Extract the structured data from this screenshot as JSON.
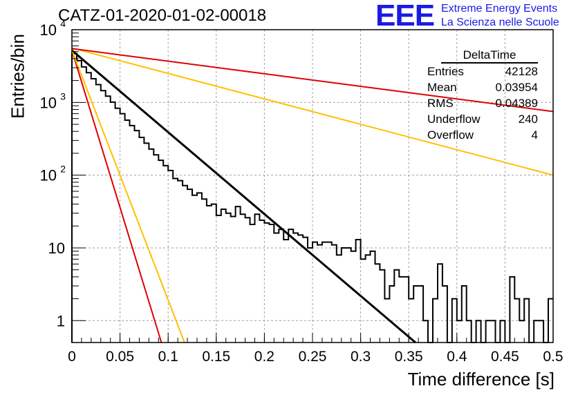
{
  "header": {
    "title": "CATZ-01-2020-01-02-00018",
    "logo_text": "EEE",
    "logo_line1": "Extreme Energy Events",
    "logo_line2": "La Scienza nelle Scuole",
    "logo_color": "#1a1ae6"
  },
  "stats_box": {
    "title": "DeltaTime",
    "rows": [
      {
        "label": "Entries",
        "value": "42128"
      },
      {
        "label": "Mean",
        "value": "0.03954"
      },
      {
        "label": "RMS",
        "value": "0.04389"
      },
      {
        "label": "Underflow",
        "value": "240"
      },
      {
        "label": "Overflow",
        "value": "4"
      }
    ]
  },
  "chart_data": {
    "type": "line",
    "title": "CATZ-01-2020-01-02-00018",
    "xlabel": "Time difference [s]",
    "ylabel": "Entries/bin",
    "xlim": [
      0,
      0.5
    ],
    "ylim": [
      0.5,
      10000
    ],
    "yscale": "log",
    "grid": true,
    "x_ticks": [
      "0",
      "0.05",
      "0.1",
      "0.15",
      "0.2",
      "0.25",
      "0.3",
      "0.35",
      "0.4",
      "0.45",
      "0.5"
    ],
    "y_ticks": [
      {
        "value": 1,
        "base": "1",
        "exp": ""
      },
      {
        "value": 10,
        "base": "10",
        "exp": ""
      },
      {
        "value": 100,
        "base": "10",
        "exp": "2"
      },
      {
        "value": 1000,
        "base": "10",
        "exp": "3"
      },
      {
        "value": 10000,
        "base": "10",
        "exp": "4"
      }
    ],
    "histogram": {
      "name": "DeltaTime",
      "bin_width": 0.005,
      "color": "#000000",
      "counts": [
        4700,
        3750,
        3080,
        2560,
        2120,
        1760,
        1450,
        1220,
        1010,
        830,
        700,
        570,
        480,
        410,
        330,
        275,
        228,
        190,
        160,
        135,
        116,
        90,
        84,
        72,
        64,
        53,
        57,
        47,
        38,
        40,
        28,
        34,
        30,
        27,
        37,
        29,
        26,
        21,
        29,
        24,
        22,
        21,
        16,
        18,
        13,
        18,
        16,
        15,
        14,
        10,
        12,
        11,
        12,
        12,
        11,
        8,
        10,
        10,
        9,
        13,
        7,
        8,
        9,
        6,
        5,
        2,
        3,
        5,
        4,
        4,
        2,
        3,
        3,
        1,
        0,
        2,
        6,
        3,
        0,
        2,
        1,
        3,
        1,
        0,
        1,
        0,
        1,
        1,
        0,
        1,
        0,
        4,
        2,
        1,
        2,
        0,
        1,
        1,
        0,
        2
      ]
    },
    "series": [
      {
        "kind": "fit",
        "color": "#000000",
        "x": [
          0,
          0.357
        ],
        "y": [
          5200,
          0.5
        ]
      },
      {
        "kind": "band",
        "color": "#ffc000",
        "x": [
          0,
          0.5
        ],
        "y": [
          5600,
          100
        ]
      },
      {
        "kind": "band",
        "color": "#dd0000",
        "x": [
          0,
          0.5
        ],
        "y": [
          5500,
          750
        ]
      },
      {
        "kind": "band",
        "color": "#dd0000",
        "x": [
          0,
          0.093
        ],
        "y": [
          5200,
          0.5
        ]
      },
      {
        "kind": "band",
        "color": "#ffc000",
        "x": [
          0,
          0.117
        ],
        "y": [
          5200,
          0.5
        ]
      }
    ]
  }
}
